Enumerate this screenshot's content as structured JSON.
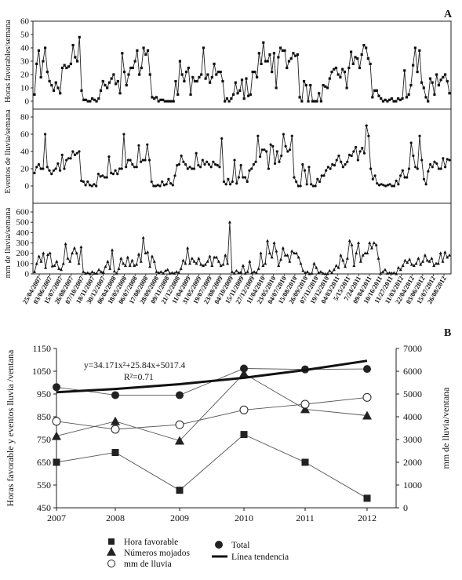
{
  "panel_a": {
    "label": "A",
    "date_labels": [
      "25/04/2007",
      "03/06/2007",
      "15/07/2007",
      "26/08/2007",
      "07/10/2007",
      "18/11/2007",
      "30/12/2007",
      "06/04/2008",
      "18/05/2008",
      "06/07/2008",
      "17/08/2008",
      "28/09/2008",
      "09/11/2008",
      "21/12/2008",
      "11/04/2009",
      "31/05/2009",
      "19/07/2009",
      "23/08/2009",
      "04/10/2009",
      "15/11/2009",
      "27/12/2009",
      "11/04/2010",
      "23/05/2010",
      "04/07/2010",
      "15/08/2010",
      "26/09/2010",
      "07/11/2010",
      "19/12/2010",
      "04/03/2011",
      "5/15/2011",
      "7/24/2011",
      "09/04/2011",
      "10/16/2011",
      "11/27/2011",
      "11/03/2012",
      "22/04/2012",
      "03/06/2012",
      "15/07/2012",
      "26/08/2012"
    ]
  },
  "panel_b": {
    "label": "B",
    "equation": "y=34.171x²+25.84x+5017.4",
    "r2": "R²=0.71",
    "legend": {
      "hora": "Hora favorable",
      "numeros": "Números mojados",
      "mm": "mm de lluvia",
      "total": "Total",
      "linea": "Línea tendencia"
    }
  },
  "chart_data": [
    {
      "type": "line",
      "ylabel": "Horas favorables/semana",
      "ylim": [
        0,
        60
      ],
      "yticks": [
        0,
        10,
        20,
        30,
        40,
        50,
        60
      ],
      "values": [
        5,
        28,
        38,
        18,
        30,
        40,
        22,
        15,
        12,
        8,
        14,
        10,
        6,
        25,
        27,
        25,
        26,
        28,
        42,
        33,
        30,
        48,
        8,
        1,
        1,
        0,
        0,
        2,
        1,
        0,
        2,
        8,
        15,
        12,
        10,
        14,
        17,
        20,
        13,
        15,
        6,
        36,
        22,
        12,
        20,
        25,
        25,
        30,
        38,
        20,
        25,
        40,
        35,
        38,
        20,
        3,
        2,
        3,
        0,
        1,
        1,
        0,
        0,
        0,
        0,
        0,
        15,
        5,
        30,
        20,
        15,
        22,
        25,
        5,
        18,
        15,
        15,
        18,
        20,
        40,
        17,
        20,
        14,
        18,
        28,
        20,
        22,
        22,
        15,
        0,
        2,
        0,
        2,
        5,
        14,
        6,
        8,
        16,
        2,
        17,
        4,
        5,
        22,
        22,
        18,
        36,
        28,
        44,
        30,
        30,
        35,
        22,
        36,
        10,
        33,
        40,
        38,
        38,
        25,
        30,
        32,
        36,
        34,
        35,
        3,
        0,
        15,
        12,
        0,
        12,
        0,
        0,
        0,
        6,
        0,
        12,
        11,
        10,
        17,
        22,
        24,
        25,
        20,
        18,
        24,
        22,
        10,
        25,
        37,
        28,
        33,
        32,
        25,
        35,
        42,
        40,
        32,
        28,
        3,
        8,
        8,
        4,
        2,
        0,
        1,
        0,
        1,
        2,
        0,
        0,
        2,
        1,
        2,
        23,
        3,
        5,
        12,
        27,
        40,
        22,
        38,
        14,
        10,
        3,
        0,
        17,
        14,
        5,
        20,
        12,
        16,
        18,
        20,
        15,
        6
      ]
    },
    {
      "type": "line",
      "ylabel": "Eventos de lluvia/semana",
      "ylim": [
        0,
        80
      ],
      "yticks": [
        0,
        20,
        40,
        60,
        80
      ],
      "values": [
        15,
        22,
        25,
        20,
        20,
        60,
        22,
        18,
        14,
        18,
        20,
        26,
        18,
        36,
        20,
        30,
        32,
        32,
        40,
        36,
        38,
        40,
        6,
        5,
        1,
        5,
        1,
        0,
        2,
        0,
        14,
        11,
        12,
        10,
        10,
        34,
        15,
        14,
        18,
        14,
        20,
        20,
        60,
        22,
        30,
        30,
        25,
        22,
        22,
        47,
        28,
        30,
        30,
        48,
        30,
        5,
        0,
        0,
        1,
        0,
        5,
        1,
        2,
        8,
        3,
        1,
        12,
        24,
        25,
        35,
        28,
        25,
        20,
        22,
        20,
        20,
        38,
        24,
        22,
        30,
        25,
        28,
        25,
        22,
        28,
        25,
        24,
        22,
        55,
        5,
        2,
        8,
        2,
        5,
        30,
        3,
        10,
        24,
        10,
        10,
        5,
        18,
        20,
        25,
        28,
        58,
        34,
        42,
        42,
        40,
        20,
        48,
        46,
        26,
        40,
        28,
        35,
        60,
        46,
        40,
        42,
        58,
        10,
        5,
        0,
        0,
        25,
        18,
        2,
        22,
        2,
        0,
        0,
        8,
        5,
        12,
        12,
        18,
        22,
        20,
        25,
        24,
        30,
        35,
        28,
        22,
        25,
        28,
        36,
        35,
        40,
        45,
        30,
        40,
        44,
        38,
        70,
        58,
        20,
        8,
        12,
        3,
        1,
        2,
        1,
        0,
        1,
        2,
        0,
        0,
        6,
        2,
        12,
        18,
        10,
        10,
        20,
        50,
        35,
        22,
        20,
        58,
        30,
        8,
        2,
        17,
        25,
        22,
        28,
        26,
        20,
        20,
        32,
        22,
        31,
        30
      ]
    },
    {
      "type": "line",
      "ylabel": "mm de lluvia/semana",
      "ylim": [
        0,
        600
      ],
      "yticks": [
        0,
        100,
        200,
        300,
        400,
        500,
        600
      ],
      "values": [
        20,
        100,
        170,
        120,
        200,
        60,
        185,
        200,
        75,
        80,
        120,
        50,
        40,
        100,
        290,
        150,
        120,
        200,
        250,
        200,
        100,
        260,
        20,
        5,
        10,
        0,
        20,
        5,
        5,
        40,
        20,
        15,
        70,
        120,
        50,
        230,
        25,
        5,
        50,
        150,
        100,
        80,
        160,
        80,
        130,
        80,
        90,
        190,
        120,
        350,
        200,
        210,
        70,
        170,
        120,
        20,
        10,
        20,
        5,
        30,
        40,
        5,
        10,
        5,
        20,
        10,
        50,
        130,
        100,
        250,
        100,
        150,
        120,
        100,
        150,
        90,
        80,
        90,
        120,
        170,
        80,
        160,
        160,
        120,
        80,
        90,
        180,
        100,
        500,
        20,
        5,
        30,
        10,
        15,
        80,
        5,
        20,
        120,
        10,
        20,
        10,
        50,
        200,
        80,
        100,
        320,
        200,
        160,
        300,
        220,
        80,
        140,
        250,
        180,
        180,
        120,
        220,
        200,
        200,
        160,
        100,
        30,
        10,
        20,
        0,
        5,
        100,
        60,
        10,
        20,
        5,
        0,
        0,
        30,
        10,
        40,
        80,
        60,
        180,
        130,
        70,
        150,
        320,
        280,
        80,
        200,
        300,
        120,
        180,
        200,
        200,
        300,
        250,
        300,
        280,
        150,
        5,
        20,
        40,
        5,
        10,
        5,
        10,
        0,
        60,
        40,
        80,
        130,
        110,
        140,
        90,
        80,
        100,
        150,
        90,
        120,
        180,
        130,
        120,
        150,
        80,
        100,
        100,
        200,
        120,
        210,
        160,
        180
      ]
    },
    {
      "type": "line",
      "xlabel": "",
      "ylabel": "Horas favorable y eventos lluvia /ventana",
      "y2label": "mm de lluvia/ventana",
      "x": [
        2007,
        2008,
        2009,
        2010,
        2011,
        2012
      ],
      "ylim": [
        450,
        1150
      ],
      "yticks": [
        450,
        550,
        650,
        750,
        850,
        950,
        1050,
        1150
      ],
      "y2lim": [
        0,
        7000
      ],
      "y2ticks": [
        0,
        1000,
        2000,
        3000,
        4000,
        5000,
        6000,
        7000
      ],
      "series": [
        {
          "name": "Hora favorable",
          "axis": "left",
          "marker": "square",
          "values": [
            650,
            693,
            527,
            772,
            650,
            492
          ]
        },
        {
          "name": "Números mojados",
          "axis": "left",
          "marker": "triangle",
          "values": [
            765,
            830,
            745,
            1040,
            883,
            855
          ]
        },
        {
          "name": "mm de lluvia",
          "axis": "right",
          "marker": "open-circle",
          "values": [
            3800,
            3450,
            3650,
            4300,
            4550,
            4850
          ]
        },
        {
          "name": "Total",
          "axis": "right",
          "marker": "filled-circle",
          "values": [
            5300,
            4950,
            4950,
            6120,
            6080,
            6100
          ]
        },
        {
          "name": "Línea tendencia",
          "axis": "right",
          "marker": "none",
          "values": [
            5080,
            5220,
            5430,
            5710,
            6050,
            6460
          ]
        }
      ]
    }
  ]
}
